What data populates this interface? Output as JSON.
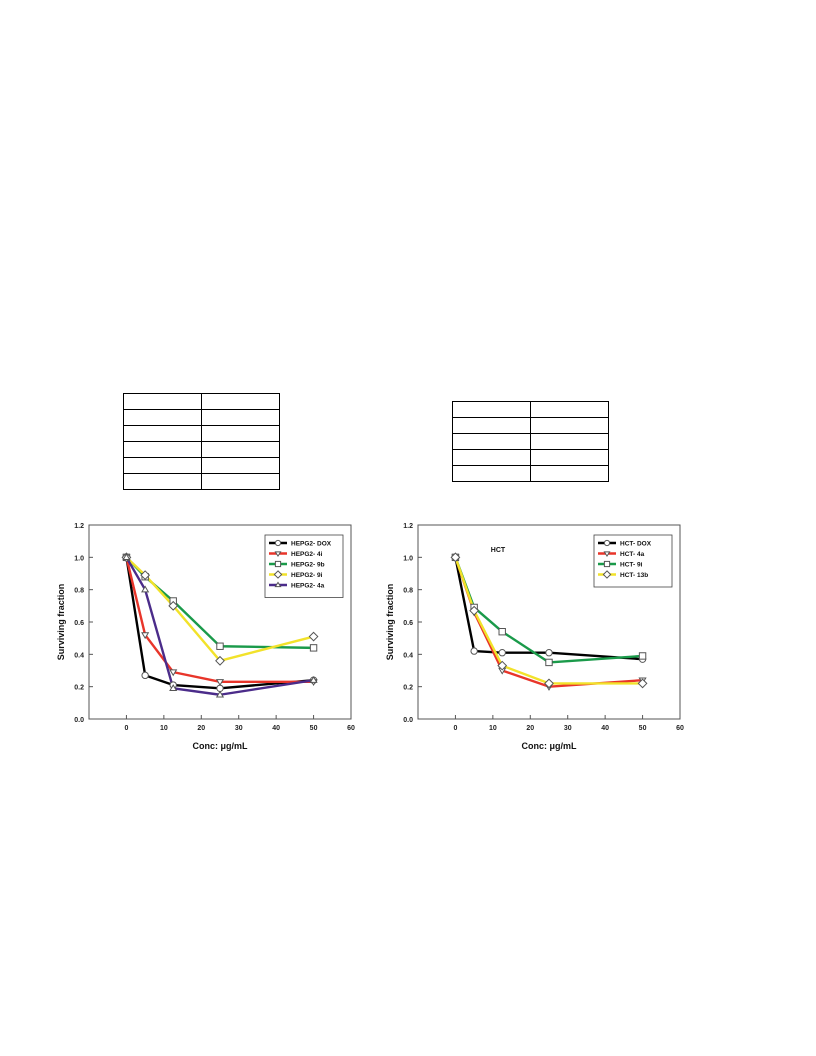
{
  "tables": {
    "left": {
      "rows": 6,
      "cols": 2
    },
    "right": {
      "rows": 5,
      "cols": 2
    }
  },
  "chart_data": [
    {
      "type": "line",
      "title": "",
      "xlabel": "Conc: μg/mL",
      "ylabel": "Surviving fraction",
      "xlim": [
        -10,
        60
      ],
      "ylim": [
        0,
        1.2
      ],
      "x_ticks": [
        "0",
        "10",
        "20",
        "30",
        "40",
        "50",
        "60"
      ],
      "y_ticks": [
        "0.0",
        "0.2",
        "0.4",
        "0.6",
        "0.8",
        "1.0",
        "1.2"
      ],
      "legend_position": "top-right",
      "grid": false,
      "x": [
        0,
        5,
        12.5,
        25,
        50
      ],
      "series": [
        {
          "name": "HEPG2- DOX",
          "color": "#000000",
          "marker": "circle",
          "values": [
            1.0,
            0.27,
            0.21,
            0.19,
            0.24
          ]
        },
        {
          "name": "HEPG2- 4i",
          "color": "#e8352a",
          "marker": "triangle-down",
          "values": [
            1.0,
            0.52,
            0.29,
            0.23,
            0.23
          ]
        },
        {
          "name": "HEPG2- 9b",
          "color": "#1a9a4a",
          "marker": "square",
          "values": [
            1.0,
            0.88,
            0.73,
            0.45,
            0.44
          ]
        },
        {
          "name": "HEPG2- 9i",
          "color": "#f2e22a",
          "marker": "diamond",
          "values": [
            1.0,
            0.89,
            0.7,
            0.36,
            0.51
          ]
        },
        {
          "name": "HEPG2- 4a",
          "color": "#4b2c8a",
          "marker": "triangle-up",
          "values": [
            1.0,
            0.8,
            0.19,
            0.15,
            0.24
          ]
        }
      ]
    },
    {
      "type": "line",
      "title": "HCT",
      "xlabel": "Conc: μg/mL",
      "ylabel": "Surviving fraction",
      "xlim": [
        -10,
        60
      ],
      "ylim": [
        0,
        1.2
      ],
      "x_ticks": [
        "0",
        "10",
        "20",
        "30",
        "40",
        "50",
        "60"
      ],
      "y_ticks": [
        "0.0",
        "0.2",
        "0.4",
        "0.6",
        "0.8",
        "1.0",
        "1.2"
      ],
      "legend_position": "top-right",
      "grid": false,
      "x": [
        0,
        5,
        12.5,
        25,
        50
      ],
      "series": [
        {
          "name": "HCT- DOX",
          "color": "#000000",
          "marker": "circle",
          "values": [
            1.0,
            0.42,
            0.41,
            0.41,
            0.37
          ]
        },
        {
          "name": "HCT- 4a",
          "color": "#e8352a",
          "marker": "triangle-down",
          "values": [
            1.0,
            0.66,
            0.3,
            0.2,
            0.24
          ]
        },
        {
          "name": "HCT- 9i",
          "color": "#1a9a4a",
          "marker": "square",
          "values": [
            1.0,
            0.69,
            0.54,
            0.35,
            0.39
          ]
        },
        {
          "name": "HCT- 13b",
          "color": "#f2e22a",
          "marker": "diamond",
          "values": [
            1.0,
            0.67,
            0.33,
            0.22,
            0.22
          ]
        }
      ]
    }
  ]
}
